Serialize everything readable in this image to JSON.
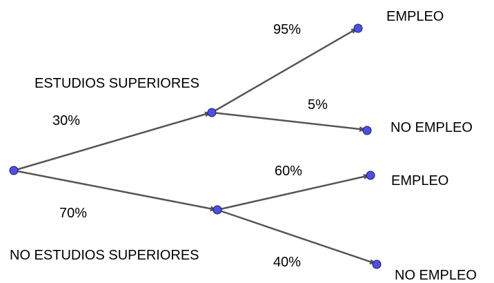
{
  "diagram": {
    "edge_color": "#555555",
    "node_fill": "#4f4fe8",
    "node_stroke": "#1a1a66",
    "text_color": "#000000",
    "level1": {
      "upper_branch": {
        "category": "ESTUDIOS SUPERIORES",
        "probability": "30%"
      },
      "lower_branch": {
        "category": "NO ESTUDIOS SUPERIORES",
        "probability": "70%"
      }
    },
    "level2_upper": {
      "top": {
        "probability": "95%",
        "outcome": "EMPLEO"
      },
      "bottom": {
        "probability": "5%",
        "outcome": "NO EMPLEO"
      }
    },
    "level2_lower": {
      "top": {
        "probability": "60%",
        "outcome": "EMPLEO"
      },
      "bottom": {
        "probability": "40%",
        "outcome": "NO EMPLEO"
      }
    }
  }
}
